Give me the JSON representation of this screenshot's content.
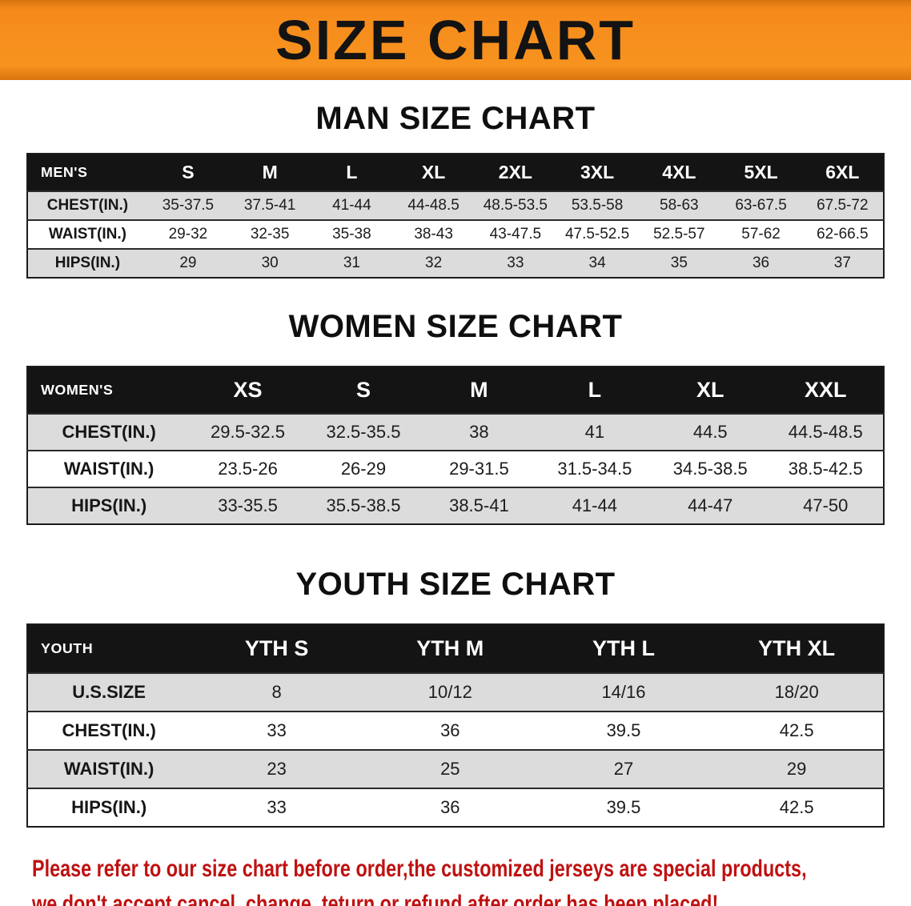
{
  "banner": {
    "title": "SIZE CHART"
  },
  "colors": {
    "banner_orange": "#f7931f",
    "table_header_black": "#141414",
    "row_stripe_gray": "#dcdcdc",
    "footer_red": "#bf1111"
  },
  "chart_data": [
    {
      "type": "table",
      "title": "MAN SIZE CHART",
      "label": "MEN'S",
      "columns": [
        "S",
        "M",
        "L",
        "XL",
        "2XL",
        "3XL",
        "4XL",
        "5XL",
        "6XL"
      ],
      "rows": [
        {
          "label": "CHEST(IN.)",
          "values": [
            "35-37.5",
            "37.5-41",
            "41-44",
            "44-48.5",
            "48.5-53.5",
            "53.5-58",
            "58-63",
            "63-67.5",
            "67.5-72"
          ]
        },
        {
          "label": "WAIST(IN.)",
          "values": [
            "29-32",
            "32-35",
            "35-38",
            "38-43",
            "43-47.5",
            "47.5-52.5",
            "52.5-57",
            "57-62",
            "62-66.5"
          ]
        },
        {
          "label": "HIPS(IN.)",
          "values": [
            "29",
            "30",
            "31",
            "32",
            "33",
            "34",
            "35",
            "36",
            "37"
          ]
        }
      ]
    },
    {
      "type": "table",
      "title": "WOMEN SIZE CHART",
      "label": "WOMEN'S",
      "columns": [
        "XS",
        "S",
        "M",
        "L",
        "XL",
        "XXL"
      ],
      "rows": [
        {
          "label": "CHEST(IN.)",
          "values": [
            "29.5-32.5",
            "32.5-35.5",
            "38",
            "41",
            "44.5",
            "44.5-48.5"
          ]
        },
        {
          "label": "WAIST(IN.)",
          "values": [
            "23.5-26",
            "26-29",
            "29-31.5",
            "31.5-34.5",
            "34.5-38.5",
            "38.5-42.5"
          ]
        },
        {
          "label": "HIPS(IN.)",
          "values": [
            "33-35.5",
            "35.5-38.5",
            "38.5-41",
            "41-44",
            "44-47",
            "47-50"
          ]
        }
      ]
    },
    {
      "type": "table",
      "title": "YOUTH SIZE CHART",
      "label": "YOUTH",
      "columns": [
        "YTH S",
        "YTH M",
        "YTH L",
        "YTH XL"
      ],
      "rows": [
        {
          "label": "U.S.SIZE",
          "values": [
            "8",
            "10/12",
            "14/16",
            "18/20"
          ]
        },
        {
          "label": "CHEST(IN.)",
          "values": [
            "33",
            "36",
            "39.5",
            "42.5"
          ]
        },
        {
          "label": "WAIST(IN.)",
          "values": [
            "23",
            "25",
            "27",
            "29"
          ]
        },
        {
          "label": "HIPS(IN.)",
          "values": [
            "33",
            "36",
            "39.5",
            "42.5"
          ]
        }
      ]
    }
  ],
  "footer": {
    "line1": "Please refer to our size chart before order,the customized jerseys are special products,",
    "line2": "we don't accept cancel, change, teturn or refund after order has been placed!"
  }
}
